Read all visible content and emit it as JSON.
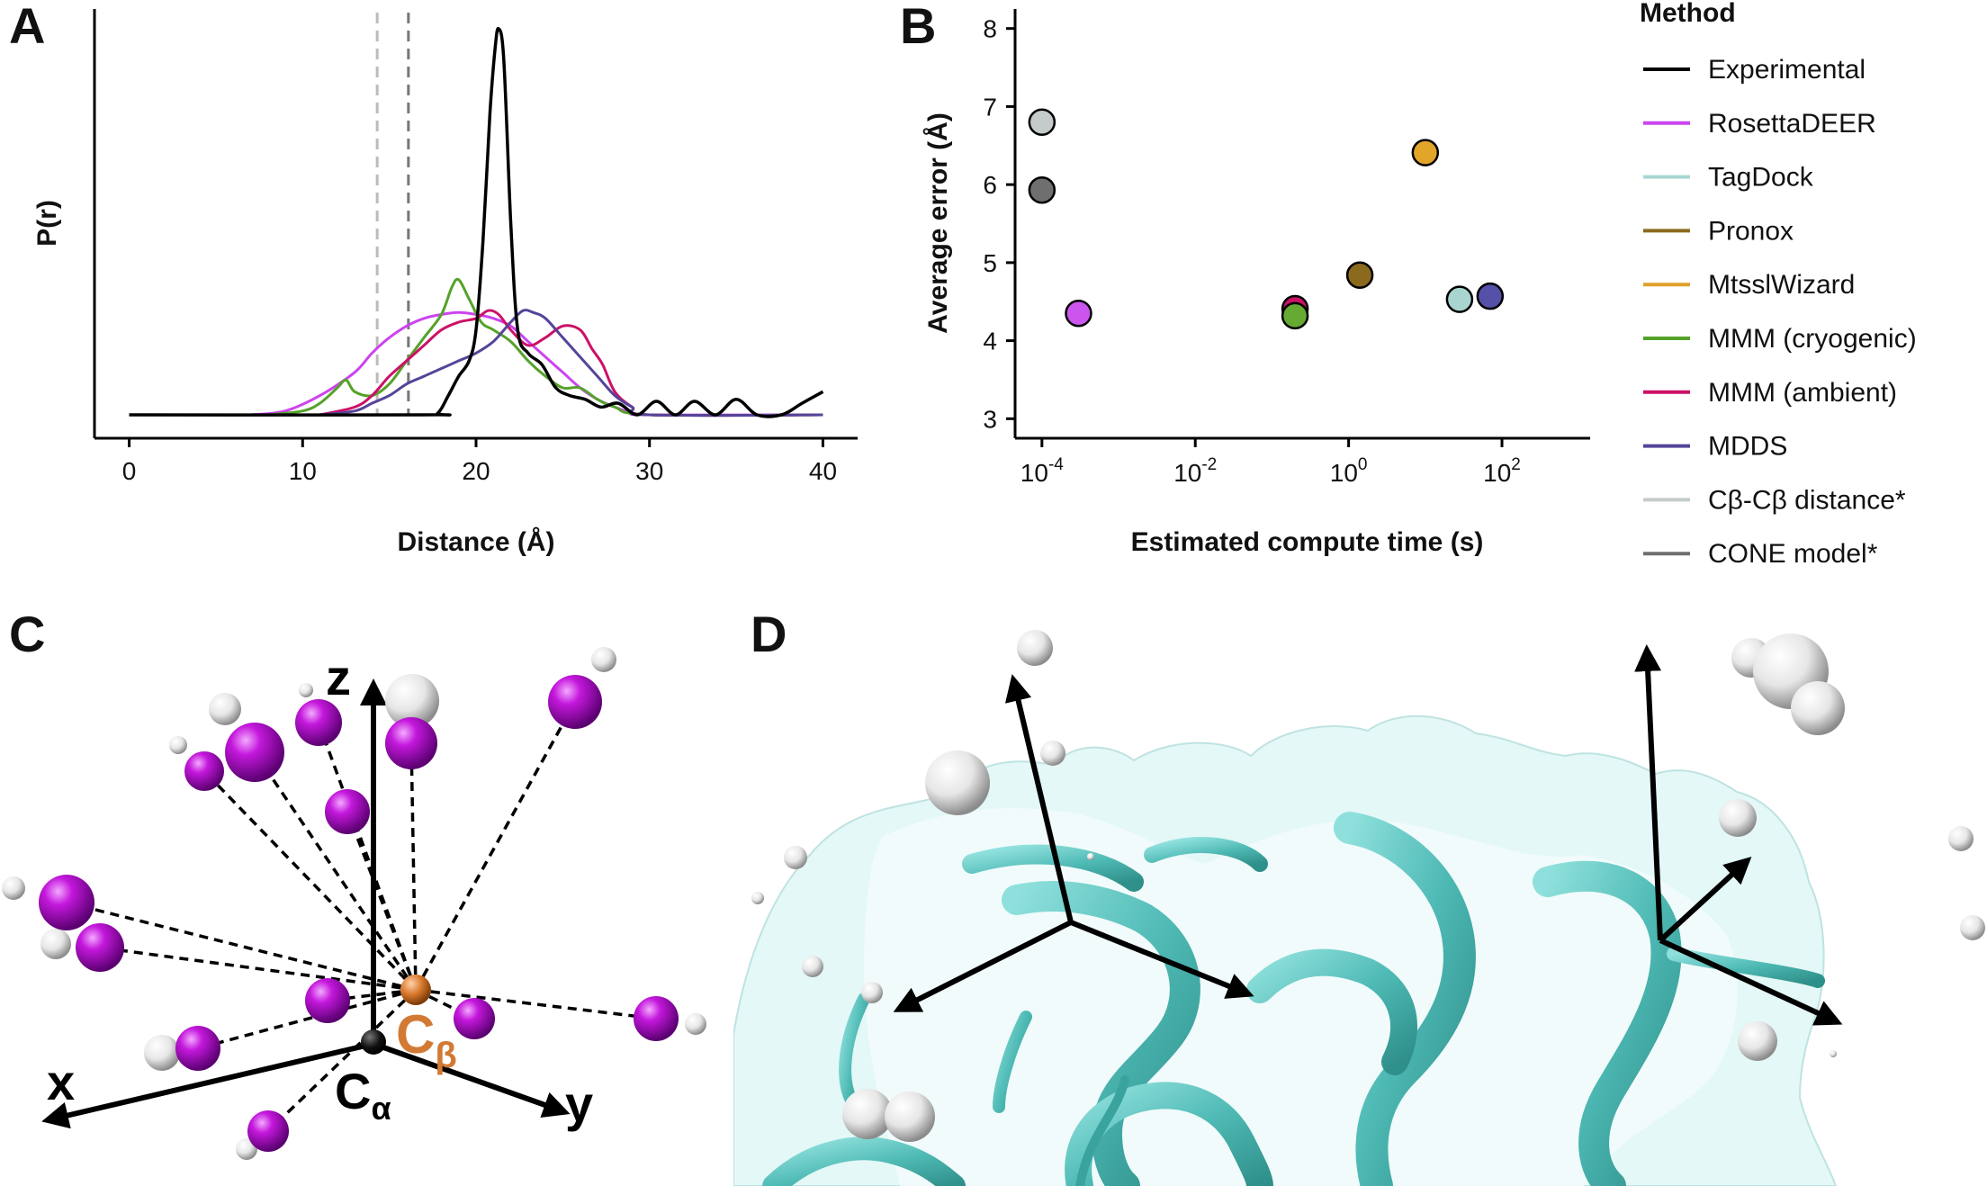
{
  "panels": {
    "a": "A",
    "b": "B",
    "c": "C",
    "d": "D"
  },
  "chart_data": [
    {
      "type": "line",
      "panel": "A",
      "xlabel": "Distance (Å)",
      "ylabel": "P(r)",
      "xlim": [
        -2,
        42
      ],
      "xticks": [
        0,
        10,
        20,
        30,
        40
      ],
      "reference_lines": [
        {
          "x": 14.3,
          "color": "#bbbbbb",
          "style": "dashed"
        },
        {
          "x": 16.1,
          "color": "#777777",
          "style": "dashed"
        }
      ],
      "series": [
        {
          "name": "Experimental",
          "color": "#000000",
          "x": [
            0,
            17.0,
            17.8,
            18.4,
            19.0,
            19.6,
            20.0,
            20.4,
            20.8,
            21.1,
            21.3,
            21.6,
            22.0,
            22.4,
            23.0,
            23.8,
            24.6,
            25.4,
            26.3,
            27.2,
            28.2,
            29.3,
            30.4,
            31.5,
            32.6,
            33.8,
            35.0,
            36.2,
            37.6,
            38.8,
            40.0
          ],
          "y": [
            0,
            0,
            0.005,
            0.05,
            0.1,
            0.14,
            0.22,
            0.45,
            0.78,
            0.95,
            1.0,
            0.92,
            0.5,
            0.22,
            0.16,
            0.13,
            0.07,
            0.05,
            0.04,
            0.02,
            0.03,
            0.0,
            0.035,
            0.0,
            0.035,
            0.0,
            0.04,
            0.0,
            0.0,
            0.03,
            0.06
          ]
        },
        {
          "name": "RosettaDEER",
          "color": "#cc44ee",
          "x": [
            7,
            9,
            11,
            13,
            14,
            15,
            16,
            17,
            18,
            19,
            20,
            21,
            22,
            23,
            24,
            25,
            26,
            27,
            28,
            29,
            30,
            40
          ],
          "y": [
            0,
            0.01,
            0.05,
            0.11,
            0.16,
            0.2,
            0.23,
            0.25,
            0.26,
            0.265,
            0.26,
            0.25,
            0.23,
            0.19,
            0.15,
            0.11,
            0.07,
            0.04,
            0.02,
            0.005,
            0,
            0
          ]
        },
        {
          "name": "MMM (cryogenic)",
          "color": "#55a22a",
          "x": [
            8,
            10,
            11,
            12,
            12.5,
            13,
            14,
            15,
            16,
            17,
            18,
            18.6,
            19,
            19.6,
            20.3,
            21,
            22,
            23,
            24,
            25,
            26,
            27,
            28,
            30,
            40
          ],
          "y": [
            0,
            0.01,
            0.03,
            0.07,
            0.09,
            0.06,
            0.05,
            0.08,
            0.14,
            0.2,
            0.26,
            0.33,
            0.35,
            0.3,
            0.24,
            0.22,
            0.19,
            0.14,
            0.1,
            0.07,
            0.07,
            0.04,
            0.02,
            0,
            0
          ]
        },
        {
          "name": "MMM (ambient)",
          "color": "#cc1166",
          "x": [
            11,
            13,
            14,
            15,
            16,
            17,
            18,
            19,
            20,
            20.7,
            21.3,
            22,
            23,
            24,
            25,
            26,
            26.7,
            27.3,
            28,
            29,
            30,
            40
          ],
          "y": [
            0,
            0.02,
            0.05,
            0.1,
            0.14,
            0.18,
            0.22,
            0.24,
            0.25,
            0.27,
            0.26,
            0.22,
            0.18,
            0.2,
            0.23,
            0.22,
            0.17,
            0.13,
            0.06,
            0.02,
            0,
            0
          ]
        },
        {
          "name": "MDDS",
          "color": "#554499",
          "x": [
            11,
            13,
            14,
            15,
            16,
            17,
            18,
            19,
            20,
            21,
            22,
            22.7,
            23.3,
            24,
            25,
            26,
            27,
            28,
            29,
            30,
            40
          ],
          "y": [
            0,
            0.01,
            0.03,
            0.05,
            0.08,
            0.1,
            0.12,
            0.14,
            0.16,
            0.19,
            0.24,
            0.27,
            0.265,
            0.25,
            0.2,
            0.15,
            0.1,
            0.05,
            0.02,
            0,
            0
          ]
        }
      ]
    },
    {
      "type": "scatter",
      "panel": "B",
      "xlabel": "Estimated compute time (s)",
      "ylabel": "Average error (Å)",
      "xscale": "log",
      "xlim_log10": [
        -4.35,
        3.15
      ],
      "ylim": [
        2.75,
        8.25
      ],
      "xtick_exponents": [
        "-4",
        "-2",
        "0",
        "2"
      ],
      "yticks": [
        3,
        4,
        5,
        6,
        7,
        8
      ],
      "points": [
        {
          "name": "Cβ-Cβ distance*",
          "x": 0.0001,
          "y": 6.8,
          "color": "#c5cbcb"
        },
        {
          "name": "CONE model*",
          "x": 0.0001,
          "y": 5.93,
          "color": "#6f6f6f"
        },
        {
          "name": "RosettaDEER",
          "x": 0.0003,
          "y": 4.35,
          "color": "#cc55ee"
        },
        {
          "name": "MMM (ambient)",
          "x": 0.2,
          "y": 4.41,
          "color": "#cc1166"
        },
        {
          "name": "MMM (cryogenic)",
          "x": 0.2,
          "y": 4.32,
          "color": "#66aa33"
        },
        {
          "name": "Pronox",
          "x": 1.4,
          "y": 4.84,
          "color": "#8b6a1e"
        },
        {
          "name": "MtsslWizard",
          "x": 10,
          "y": 6.41,
          "color": "#e1a52a"
        },
        {
          "name": "TagDock",
          "x": 28,
          "y": 4.53,
          "color": "#a8d5d0"
        },
        {
          "name": "MDDS",
          "x": 70,
          "y": 4.57,
          "color": "#5550a8"
        }
      ]
    }
  ],
  "legend": {
    "title": "Method",
    "items": [
      {
        "label": "Experimental",
        "color": "#000000"
      },
      {
        "label": "RosettaDEER",
        "color": "#cc44ee"
      },
      {
        "label": "TagDock",
        "color": "#a8d5d0"
      },
      {
        "label": "Pronox",
        "color": "#8b6a1e"
      },
      {
        "label": "MtsslWizard",
        "color": "#dea12a"
      },
      {
        "label": "MMM (cryogenic)",
        "color": "#55a22a"
      },
      {
        "label": "MMM (ambient)",
        "color": "#cc1166"
      },
      {
        "label": "MDDS",
        "color": "#554499"
      },
      {
        "label": "Cβ-Cβ distance*",
        "color": "#c5cbcb"
      },
      {
        "label": "CONE model*",
        "color": "#6f6f6f"
      }
    ]
  },
  "diagram_c": {
    "axis_x": "x",
    "axis_y": "y",
    "axis_z": "z",
    "calpha_main": "C",
    "calpha_sub": "α",
    "cbeta_main": "C",
    "cbeta_sub": "β",
    "spin_color": "#aa00cc",
    "cbeta_color": "#d97a2e"
  },
  "diagram_d": {
    "surface_color": "#d8f5f4",
    "ribbon_color": "#5cc9c4"
  }
}
